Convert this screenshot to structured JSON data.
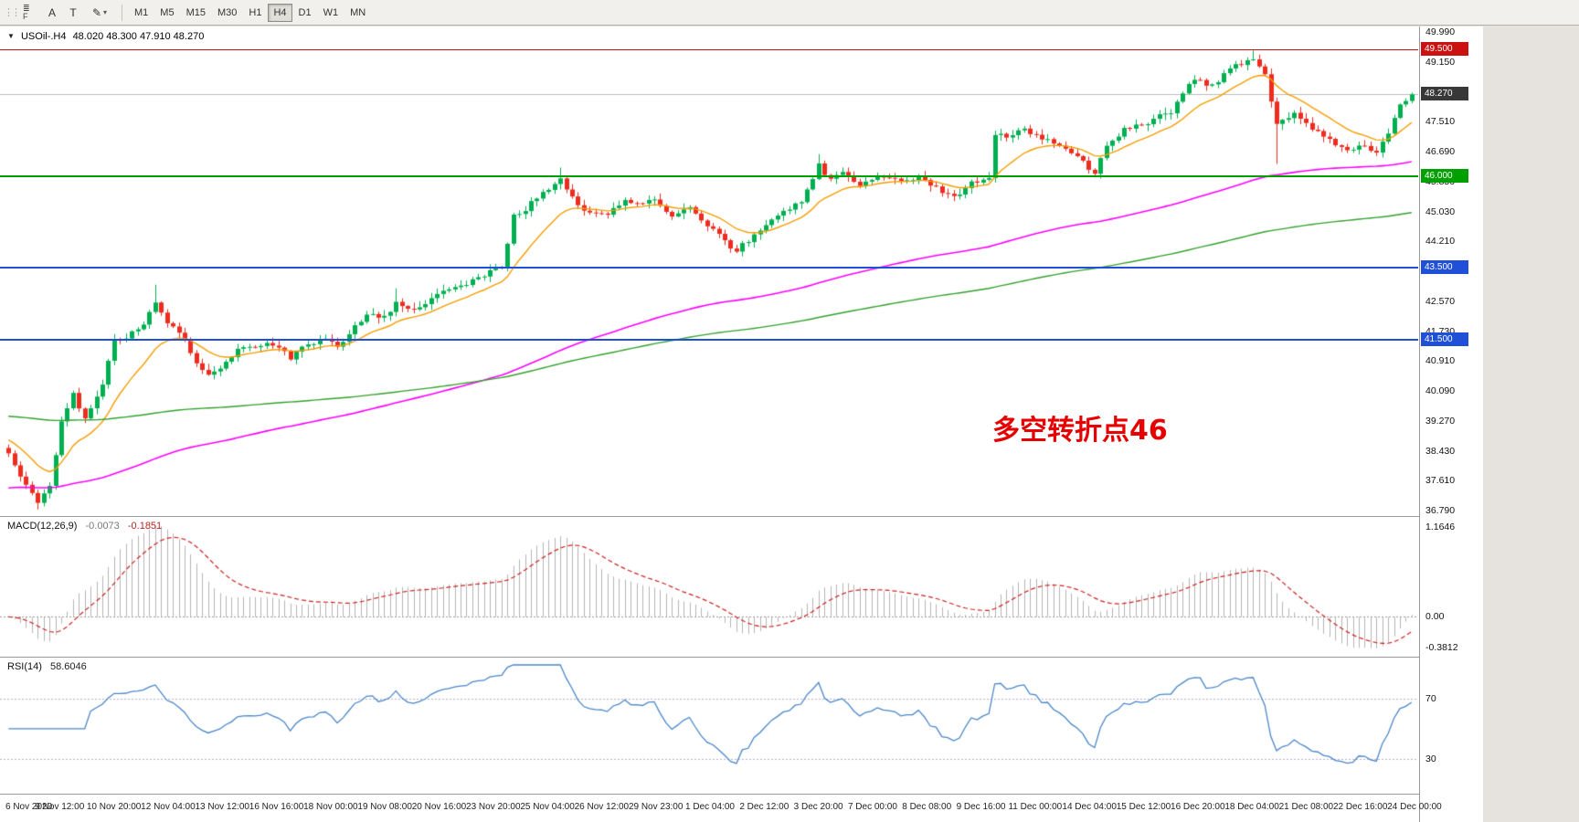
{
  "toolbar": {
    "grip": "⋮⋮",
    "stack_top": "≣",
    "stack_bottom": "F",
    "cursor": "A",
    "text": "T",
    "draw": "✎",
    "draw_arrow": "▾",
    "timeframes": [
      {
        "label": "M1",
        "active": false
      },
      {
        "label": "M5",
        "active": false
      },
      {
        "label": "M15",
        "active": false
      },
      {
        "label": "M30",
        "active": false
      },
      {
        "label": "H1",
        "active": false
      },
      {
        "label": "H4",
        "active": true
      },
      {
        "label": "D1",
        "active": false
      },
      {
        "label": "W1",
        "active": false
      },
      {
        "label": "MN",
        "active": false
      }
    ]
  },
  "title_bar": {
    "arrow": "▼",
    "symbol": "USOil-.H4",
    "ohlc": "48.020 48.300 47.910 48.270"
  },
  "chart_data": {
    "type": "candlestick",
    "symbol": "USOil-",
    "timeframe": "H4",
    "open": 48.02,
    "high": 48.3,
    "low": 47.91,
    "close": 48.27,
    "bars": 240,
    "price_range": [
      36.79,
      49.99
    ],
    "up_color": "#00b050",
    "down_color": "#ee2b1f",
    "keypoints": [
      [
        0,
        38.3
      ],
      [
        2,
        37.7
      ],
      [
        5,
        37.0
      ],
      [
        7,
        37.5
      ],
      [
        9,
        39.2
      ],
      [
        11,
        40.0
      ],
      [
        13,
        39.3
      ],
      [
        16,
        40.3
      ],
      [
        18,
        41.5
      ],
      [
        20,
        41.6
      ],
      [
        23,
        41.9
      ],
      [
        25,
        42.5
      ],
      [
        27,
        42.0
      ],
      [
        30,
        41.5
      ],
      [
        32,
        40.9
      ],
      [
        34,
        40.5
      ],
      [
        37,
        40.9
      ],
      [
        39,
        41.2
      ],
      [
        42,
        41.3
      ],
      [
        45,
        41.4
      ],
      [
        48,
        41.0
      ],
      [
        51,
        41.4
      ],
      [
        54,
        41.5
      ],
      [
        56,
        41.3
      ],
      [
        59,
        41.9
      ],
      [
        61,
        42.2
      ],
      [
        64,
        42.1
      ],
      [
        66,
        42.5
      ],
      [
        69,
        42.3
      ],
      [
        72,
        42.6
      ],
      [
        75,
        42.9
      ],
      [
        78,
        43.0
      ],
      [
        81,
        43.3
      ],
      [
        84,
        43.5
      ],
      [
        86,
        44.9
      ],
      [
        88,
        45.1
      ],
      [
        91,
        45.6
      ],
      [
        94,
        45.9
      ],
      [
        96,
        45.4
      ],
      [
        98,
        45.1
      ],
      [
        102,
        45.0
      ],
      [
        105,
        45.3
      ],
      [
        108,
        45.2
      ],
      [
        110,
        45.4
      ],
      [
        113,
        44.9
      ],
      [
        116,
        45.1
      ],
      [
        119,
        44.7
      ],
      [
        122,
        44.2
      ],
      [
        124,
        43.95
      ],
      [
        127,
        44.4
      ],
      [
        130,
        44.8
      ],
      [
        133,
        45.1
      ],
      [
        135,
        45.3
      ],
      [
        138,
        46.3
      ],
      [
        140,
        45.9
      ],
      [
        142,
        46.1
      ],
      [
        145,
        45.8
      ],
      [
        148,
        46.0
      ],
      [
        152,
        45.9
      ],
      [
        155,
        46.0
      ],
      [
        158,
        45.7
      ],
      [
        161,
        45.4
      ],
      [
        164,
        45.8
      ],
      [
        167,
        45.95
      ],
      [
        168,
        47.2
      ],
      [
        170,
        47.1
      ],
      [
        173,
        47.3
      ],
      [
        177,
        47.0
      ],
      [
        180,
        46.7
      ],
      [
        183,
        46.4
      ],
      [
        185,
        46.1
      ],
      [
        187,
        46.8
      ],
      [
        190,
        47.3
      ],
      [
        193,
        47.4
      ],
      [
        195,
        47.6
      ],
      [
        198,
        47.8
      ],
      [
        200,
        48.3
      ],
      [
        202,
        48.7
      ],
      [
        205,
        48.5
      ],
      [
        207,
        48.8
      ],
      [
        209,
        49.1
      ],
      [
        212,
        49.2
      ],
      [
        214,
        48.8
      ],
      [
        216,
        47.4
      ],
      [
        219,
        47.7
      ],
      [
        221,
        47.5
      ],
      [
        223,
        47.2
      ],
      [
        226,
        46.9
      ],
      [
        228,
        46.7
      ],
      [
        230,
        46.9
      ],
      [
        233,
        46.6
      ],
      [
        235,
        47.2
      ],
      [
        236,
        47.6
      ],
      [
        237,
        48.0
      ],
      [
        238,
        48.1
      ],
      [
        239,
        48.27
      ]
    ],
    "wick_events": [
      {
        "i": 5,
        "low": 36.82
      },
      {
        "i": 25,
        "high": 43.02
      },
      {
        "i": 66,
        "high": 42.92
      },
      {
        "i": 94,
        "high": 46.25
      },
      {
        "i": 138,
        "high": 46.62
      },
      {
        "i": 212,
        "high": 49.5
      },
      {
        "i": 216,
        "low": 46.35
      }
    ],
    "moving_averages": [
      {
        "name": "ma-fast",
        "period": 13,
        "init": 38.8,
        "color": "#f59d00",
        "width": 1.4
      },
      {
        "name": "ma-mid",
        "period": 130,
        "init": 37.4,
        "color": "#ff00ff",
        "width": 1.6
      },
      {
        "name": "ma-slow",
        "period": 240,
        "init": 39.4,
        "color": "#33a02c",
        "width": 1.4
      }
    ],
    "horizontal_lines": [
      {
        "label": "49.500",
        "price": 49.5,
        "color": "#cc1111",
        "thickness": 1
      },
      {
        "label": "46.000",
        "price": 46.0,
        "color": "#00a000",
        "thickness": 2
      },
      {
        "label": "43.500",
        "price": 43.5,
        "color": "#2050d8",
        "thickness": 2
      },
      {
        "label": "41.500",
        "price": 41.5,
        "color": "#2050d8",
        "thickness": 2
      }
    ],
    "current_price": {
      "label": "48.270",
      "price": 48.27,
      "badge_color": "#383838"
    },
    "price_scale_labels": [
      "49.990",
      "49.150",
      "48.330",
      "47.510",
      "46.690",
      "45.850",
      "45.030",
      "44.210",
      "43.390",
      "42.570",
      "41.730",
      "40.910",
      "40.090",
      "39.270",
      "38.430",
      "37.610",
      "36.790"
    ],
    "annotation": {
      "text": "多空转折点46",
      "color": "#e60000"
    },
    "macd": {
      "name": "MACD(12,26,9)",
      "fast": 12,
      "slow": 26,
      "signal_period": 9,
      "value_main": "-0.0073",
      "value_signal": "-0.1851",
      "scale_labels": [
        "1.1646",
        "0.00",
        "-0.3812"
      ],
      "histogram_color": "#b5b5b5",
      "signal_color": "#cc2222"
    },
    "rsi": {
      "name": "RSI(14)",
      "period": 14,
      "value": "58.6046",
      "levels": [
        70,
        30
      ],
      "range": [
        12,
        92
      ],
      "color": "#4a86c8"
    },
    "time_labels": [
      "6 Nov 2020",
      "9 Nov 12:00",
      "10 Nov 20:00",
      "12 Nov 04:00",
      "13 Nov 12:00",
      "16 Nov 16:00",
      "18 Nov 00:00",
      "19 Nov 08:00",
      "20 Nov 16:00",
      "23 Nov 20:00",
      "25 Nov 04:00",
      "26 Nov 12:00",
      "29 Nov 23:00",
      "1 Dec 04:00",
      "2 Dec 12:00",
      "3 Dec 20:00",
      "7 Dec 00:00",
      "8 Dec 08:00",
      "9 Dec 16:00",
      "11 Dec 00:00",
      "14 Dec 04:00",
      "15 Dec 12:00",
      "16 Dec 20:00",
      "18 Dec 04:00",
      "21 Dec 08:00",
      "22 Dec 16:00",
      "24 Dec 00:00"
    ]
  }
}
